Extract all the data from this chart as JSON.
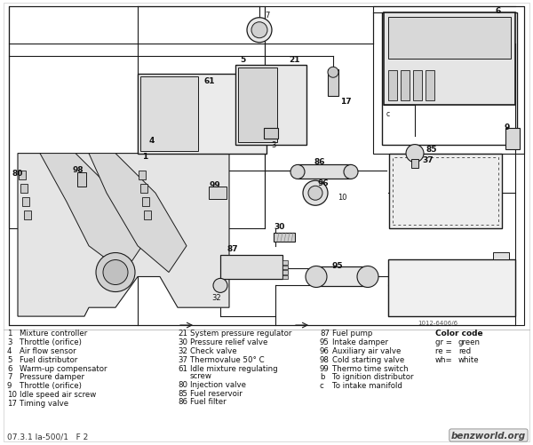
{
  "bg_color": "#ffffff",
  "diagram_bg": "#ffffff",
  "line_color": "#1a1a1a",
  "legend_col1": [
    [
      "1",
      "Mixture controller"
    ],
    [
      "3",
      "Throttle (orifice)"
    ],
    [
      "4",
      "Air flow sensor"
    ],
    [
      "5",
      "Fuel distributor"
    ],
    [
      "6",
      "Warm-up compensator"
    ],
    [
      "7",
      "Pressure damper"
    ],
    [
      "9",
      "Throttle (orifice)"
    ],
    [
      "10",
      "Idle speed air screw"
    ],
    [
      "17",
      "Timing valve"
    ]
  ],
  "legend_col2": [
    [
      "21",
      "System pressure regulator"
    ],
    [
      "30",
      "Pressure relief valve"
    ],
    [
      "32",
      "Check valve"
    ],
    [
      "37",
      "Thermovalue 50° C"
    ],
    [
      "61",
      "Idle mixture regulating\n      screw"
    ],
    [
      "80",
      "Injection valve"
    ],
    [
      "85",
      "Fuel reservoir"
    ],
    [
      "86",
      "Fuel filter"
    ]
  ],
  "legend_col3": [
    [
      "87",
      "Fuel pump"
    ],
    [
      "95",
      "Intake damper"
    ],
    [
      "96",
      "Auxiliary air valve"
    ],
    [
      "98",
      "Cold starting valve"
    ],
    [
      "99",
      "Thermo time switch"
    ],
    [
      "b",
      "To ignition distributor"
    ],
    [
      "c",
      "To intake manifold"
    ]
  ],
  "color_code_title": "Color code",
  "color_codes": [
    [
      "gr =",
      "green"
    ],
    [
      "re =",
      "red"
    ],
    [
      "wh=",
      "white"
    ]
  ],
  "footer_left": "07.3.1 Ia-500/1   F 2",
  "footer_right": "benzworld.org",
  "diagram_ref": "1012-6406/6"
}
